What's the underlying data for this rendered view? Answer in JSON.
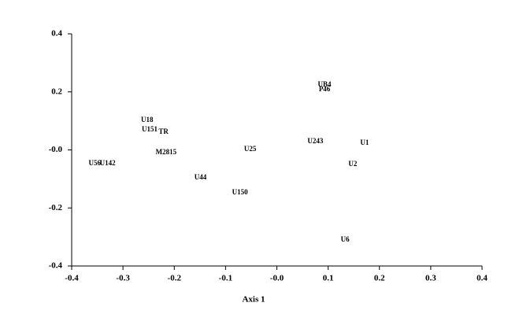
{
  "chart_data": {
    "type": "scatter",
    "x_label": "Axis 1",
    "labels": [
      "U56",
      "U142",
      "U18",
      "U151",
      "TR",
      "M2815",
      "U44",
      "U150",
      "U25",
      "U243",
      "UB4",
      "P46",
      "U1",
      "U2",
      "U6"
    ],
    "x": [
      -0.355,
      -0.33,
      -0.253,
      -0.248,
      -0.221,
      -0.216,
      -0.149,
      -0.072,
      -0.052,
      0.075,
      0.093,
      0.093,
      0.171,
      0.148,
      0.133
    ],
    "values": [
      -0.047,
      -0.047,
      0.102,
      0.069,
      0.061,
      -0.009,
      -0.096,
      -0.148,
      0.001,
      0.028,
      0.224,
      0.207,
      0.023,
      -0.05,
      -0.31
    ],
    "xlim": [
      -0.4,
      0.4
    ],
    "ylim": [
      -0.4,
      0.4
    ],
    "xticks": [
      -0.4,
      -0.3,
      -0.2,
      -0.1,
      {
        "value": 0,
        "label": "-0.0"
      },
      0.1,
      0.2,
      0.3,
      0.4
    ],
    "yticks": [
      -0.4,
      -0.2,
      {
        "value": 0,
        "label": "-0.0"
      },
      0.2,
      0.4
    ],
    "color": "#000000"
  }
}
